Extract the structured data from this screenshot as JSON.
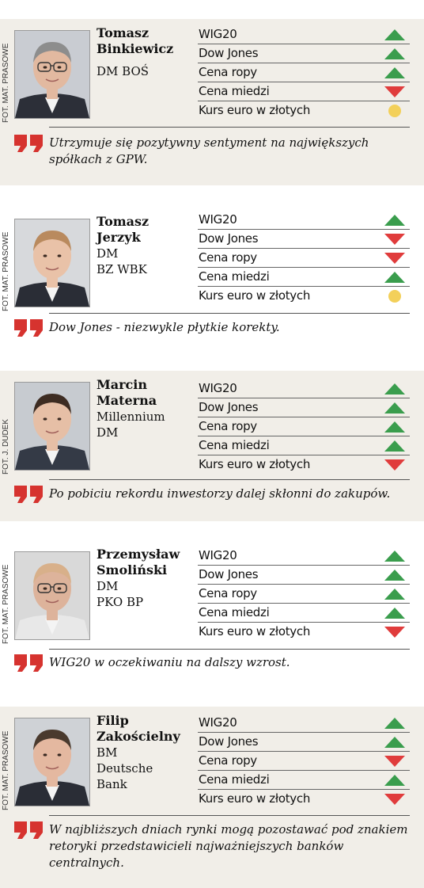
{
  "colors": {
    "up": "#3a9d4d",
    "down": "#e03c3c",
    "flat": "#f3d05a",
    "shade": "#f1eee8"
  },
  "cards": [
    {
      "photo_credit": "FOT. MAT. PRASOWE",
      "name": [
        "Tomasz",
        "Binkiewicz"
      ],
      "institution": [
        "DM BOŚ"
      ],
      "rows": [
        {
          "label": "WIG20",
          "trend": "up"
        },
        {
          "label": "Dow Jones",
          "trend": "up"
        },
        {
          "label": "Cena ropy",
          "trend": "up"
        },
        {
          "label": "Cena miedzi",
          "trend": "down"
        },
        {
          "label": "Kurs euro w złotych",
          "trend": "flat"
        }
      ],
      "quote": "Utrzymuje się pozytywny sentyment na największych spółkach z GPW."
    },
    {
      "photo_credit": "FOT. MAT. PRASOWE",
      "name": [
        "Tomasz",
        "Jerzyk"
      ],
      "institution": [
        "DM",
        "BZ WBK"
      ],
      "rows": [
        {
          "label": "WIG20",
          "trend": "up"
        },
        {
          "label": "Dow Jones",
          "trend": "down"
        },
        {
          "label": "Cena ropy",
          "trend": "down"
        },
        {
          "label": "Cena miedzi",
          "trend": "up"
        },
        {
          "label": "Kurs euro w złotych",
          "trend": "flat"
        }
      ],
      "quote": "Dow Jones - niezwykle płytkie korekty."
    },
    {
      "photo_credit": "FOT. J. DUDEK",
      "name": [
        "Marcin",
        "Materna"
      ],
      "institution": [
        "Millennium",
        "DM"
      ],
      "rows": [
        {
          "label": "WIG20",
          "trend": "up"
        },
        {
          "label": "Dow Jones",
          "trend": "up"
        },
        {
          "label": "Cena ropy",
          "trend": "up"
        },
        {
          "label": "Cena miedzi",
          "trend": "up"
        },
        {
          "label": "Kurs euro w złotych",
          "trend": "down"
        }
      ],
      "quote": "Po pobiciu rekordu inwestorzy dalej skłonni do zakupów."
    },
    {
      "photo_credit": "FOT. MAT. PRASOWE",
      "name": [
        "Przemysław",
        "Smoliński"
      ],
      "institution": [
        "DM",
        "PKO BP"
      ],
      "rows": [
        {
          "label": "WIG20",
          "trend": "up"
        },
        {
          "label": "Dow Jones",
          "trend": "up"
        },
        {
          "label": "Cena ropy",
          "trend": "up"
        },
        {
          "label": "Cena miedzi",
          "trend": "up"
        },
        {
          "label": "Kurs euro w złotych",
          "trend": "down"
        }
      ],
      "quote": "WIG20 w oczekiwaniu na dalszy wzrost."
    },
    {
      "photo_credit": "FOT. MAT. PRASOWE",
      "name": [
        "Filip",
        "Zakościelny"
      ],
      "institution": [
        "BM",
        "Deutsche",
        "Bank"
      ],
      "rows": [
        {
          "label": "WIG20",
          "trend": "up"
        },
        {
          "label": "Dow Jones",
          "trend": "up"
        },
        {
          "label": "Cena ropy",
          "trend": "down"
        },
        {
          "label": "Cena miedzi",
          "trend": "up"
        },
        {
          "label": "Kurs euro w złotych",
          "trend": "down"
        }
      ],
      "quote": "W najbliższych dniach rynki mogą pozostawać pod znakiem retoryki przedstawicieli najważniejszych banków centralnych."
    }
  ]
}
